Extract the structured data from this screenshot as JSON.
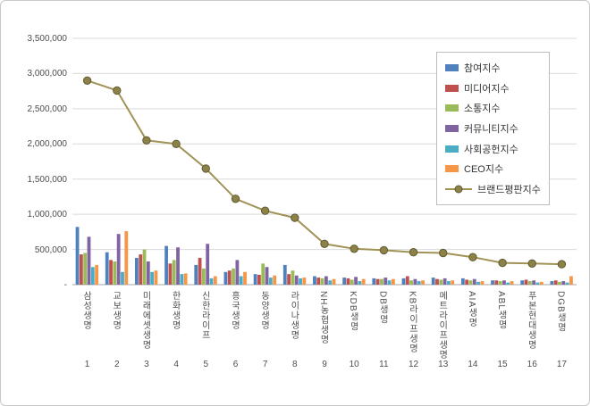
{
  "chart_data": {
    "type": "bar",
    "title": "",
    "categories": [
      "삼성생명",
      "교보생명",
      "미래에셋생명",
      "한화생명",
      "신한라이프",
      "흥국생명",
      "동양생명",
      "라이나생명",
      "NH농협생명",
      "KDB생명",
      "DB생명",
      "KB라이프생명",
      "메트라이프생명",
      "AIA생명",
      "ABL생명",
      "푸본현대생명",
      "DGB생명"
    ],
    "category_numbers": [
      "1",
      "2",
      "3",
      "4",
      "5",
      "6",
      "7",
      "8",
      "9",
      "10",
      "11",
      "12",
      "13",
      "14",
      "15",
      "16",
      "17"
    ],
    "series": [
      {
        "name": "참여지수",
        "color": "#4F81BD",
        "values": [
          820000,
          460000,
          380000,
          550000,
          280000,
          180000,
          150000,
          280000,
          120000,
          100000,
          90000,
          90000,
          100000,
          90000,
          60000,
          60000,
          50000
        ]
      },
      {
        "name": "미디어지수",
        "color": "#C0504D",
        "values": [
          430000,
          350000,
          430000,
          300000,
          380000,
          200000,
          140000,
          150000,
          100000,
          90000,
          80000,
          120000,
          80000,
          70000,
          60000,
          70000,
          60000
        ]
      },
      {
        "name": "소통지수",
        "color": "#9BBB59",
        "values": [
          450000,
          330000,
          500000,
          350000,
          230000,
          230000,
          300000,
          200000,
          90000,
          70000,
          80000,
          60000,
          70000,
          60000,
          50000,
          50000,
          40000
        ]
      },
      {
        "name": "커뮤니티지수",
        "color": "#8064A2",
        "values": [
          680000,
          720000,
          330000,
          530000,
          580000,
          350000,
          250000,
          130000,
          120000,
          110000,
          100000,
          80000,
          90000,
          80000,
          60000,
          60000,
          50000
        ]
      },
      {
        "name": "사회공헌지수",
        "color": "#4BACC6",
        "values": [
          250000,
          180000,
          180000,
          150000,
          90000,
          120000,
          100000,
          90000,
          60000,
          50000,
          60000,
          50000,
          50000,
          40000,
          30000,
          30000,
          30000
        ]
      },
      {
        "name": "CEO지수",
        "color": "#F79646",
        "values": [
          280000,
          760000,
          200000,
          160000,
          120000,
          180000,
          130000,
          100000,
          80000,
          80000,
          80000,
          60000,
          60000,
          50000,
          50000,
          40000,
          120000
        ]
      }
    ],
    "line_series": {
      "name": "브랜드평판지수",
      "color": "#A09355",
      "marker_fill": "#8C8146",
      "marker_stroke": "#5F5A33",
      "values": [
        2900000,
        2760000,
        2050000,
        2000000,
        1650000,
        1220000,
        1050000,
        950000,
        580000,
        510000,
        490000,
        460000,
        450000,
        390000,
        310000,
        300000,
        290000
      ]
    },
    "y_axis": {
      "min": 0,
      "max": 3500000,
      "step": 500000,
      "tick_labels_bottom_to_top": [
        "-",
        "500,000",
        "1,000,000",
        "1,500,000",
        "2,000,000",
        "2,500,000",
        "3,000,000",
        "3,500,000"
      ]
    },
    "legend_position": "right-top",
    "grid": true
  }
}
